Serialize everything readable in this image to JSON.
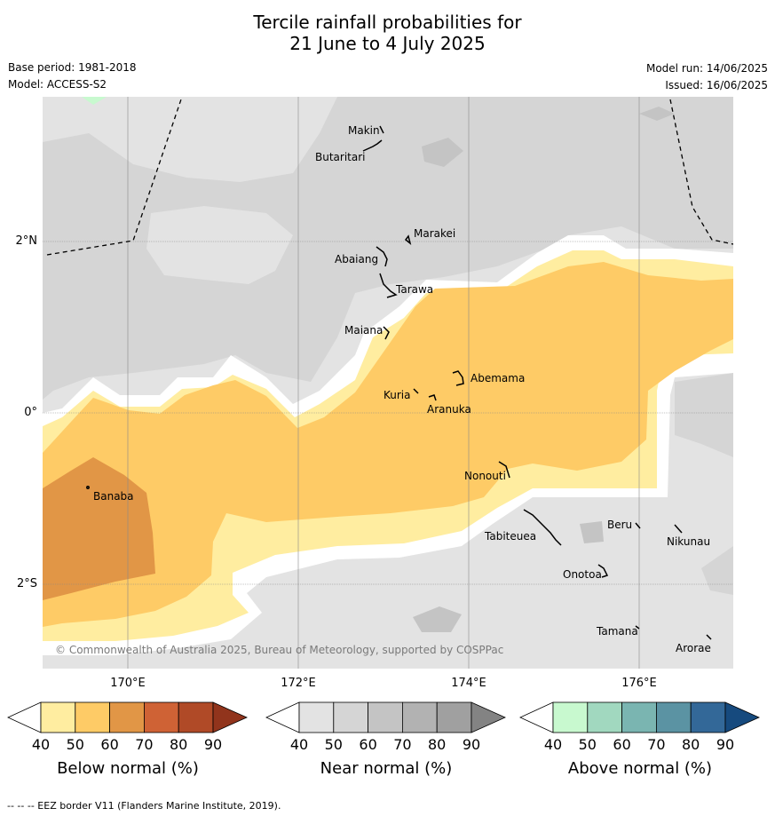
{
  "title_line1": "Tercile rainfall probabilities for",
  "title_line2": "21 June to 4 July 2025",
  "meta": {
    "base_period": "Base period: 1981-2018",
    "model": "Model: ACCESS-S2",
    "model_run": "Model run: 14/06/2025",
    "issued": "Issued: 16/06/2025"
  },
  "map": {
    "copyright": "© Commonwealth of Australia 2025, Bureau of Meteorology, supported by COSPPac",
    "lon_labels": [
      "170°E",
      "172°E",
      "174°E",
      "176°E"
    ],
    "lat_labels": [
      "2°N",
      "0°",
      "2°S"
    ],
    "places": [
      "Makin",
      "Butaritari",
      "Marakei",
      "Abaiang",
      "Tarawa",
      "Maiana",
      "Abemama",
      "Kuria",
      "Aranuka",
      "Nonouti",
      "Banaba",
      "Tabiteuea",
      "Beru",
      "Nikunau",
      "Onotoa",
      "Tamana",
      "Arorae"
    ]
  },
  "colorbars": [
    {
      "title": "Below normal (%)",
      "ticks": [
        "40",
        "50",
        "60",
        "70",
        "80",
        "90"
      ],
      "colors": [
        "#ffffff",
        "#ffeda0",
        "#fecb66",
        "#e19646",
        "#cf6235",
        "#b04a27",
        "#91341c"
      ]
    },
    {
      "title": "Near normal (%)",
      "ticks": [
        "40",
        "50",
        "60",
        "70",
        "80",
        "90"
      ],
      "colors": [
        "#ffffff",
        "#e3e3e3",
        "#d5d5d5",
        "#c4c4c4",
        "#b2b2b2",
        "#a0a0a0",
        "#838383"
      ]
    },
    {
      "title": "Above normal (%)",
      "ticks": [
        "40",
        "50",
        "60",
        "70",
        "80",
        "90"
      ],
      "colors": [
        "#ffffff",
        "#c8f9cf",
        "#a1d8bf",
        "#7ab5b1",
        "#5b93a3",
        "#336898",
        "#164a7e"
      ]
    }
  ],
  "footer": "--  --  -- EEZ border V11 (Flanders Marine Institute, 2019)."
}
